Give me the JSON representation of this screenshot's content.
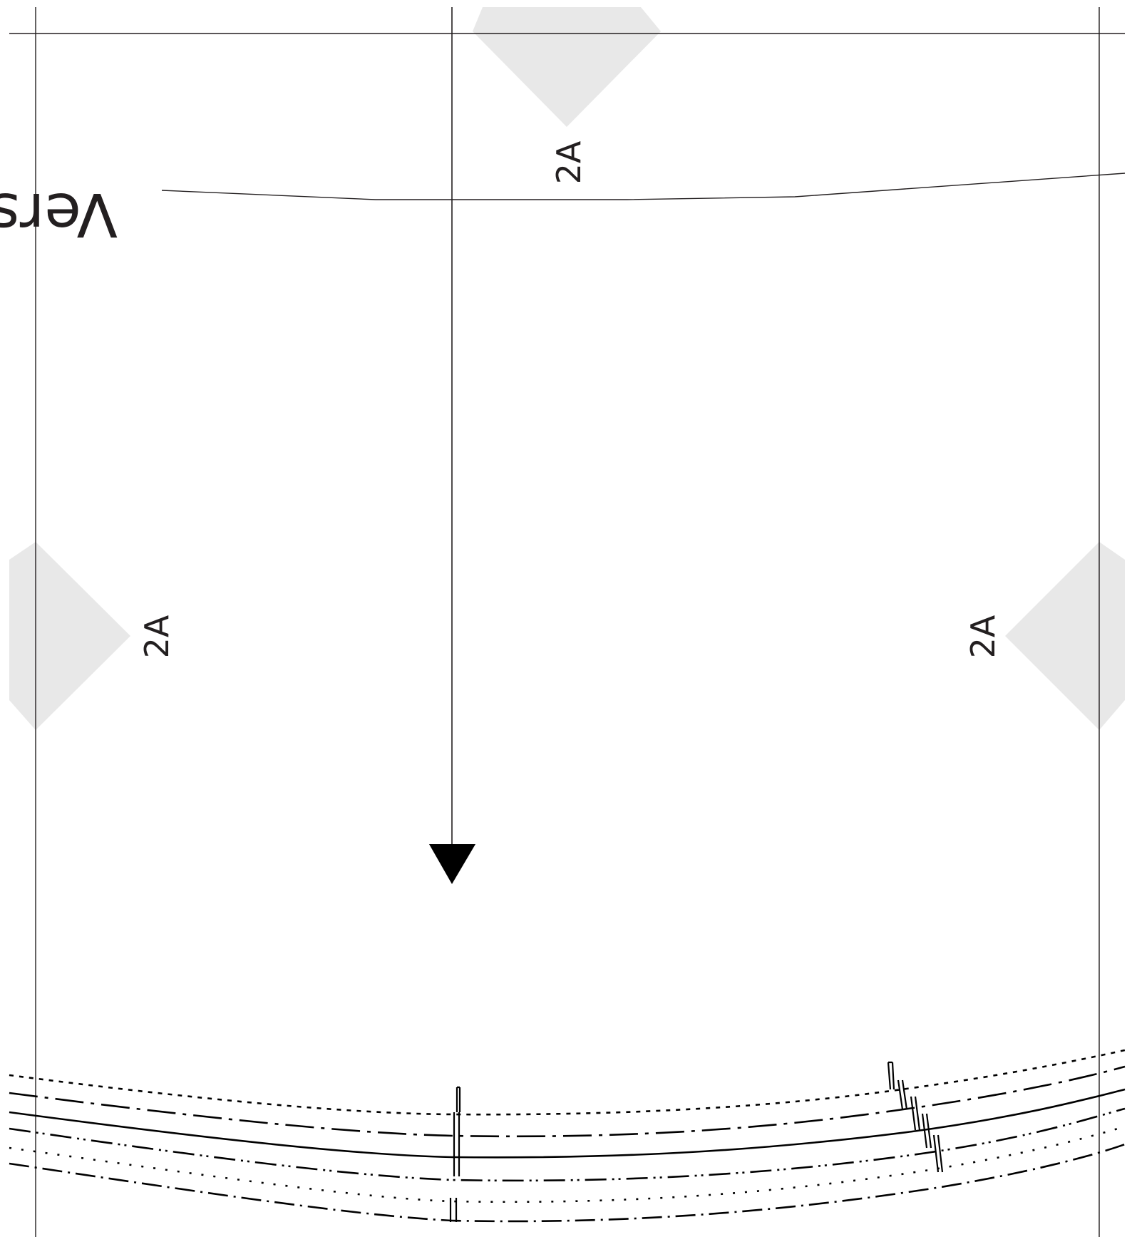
{
  "pattern": {
    "piece_label": "2A",
    "version_text": "Versio",
    "colors": {
      "line": "#231f20",
      "marker_fill": "#e8e8e8",
      "arrow": "#000000"
    },
    "icons": {
      "grainline": "grainline-arrow-icon",
      "page_join": "diamond-marker-icon"
    }
  }
}
